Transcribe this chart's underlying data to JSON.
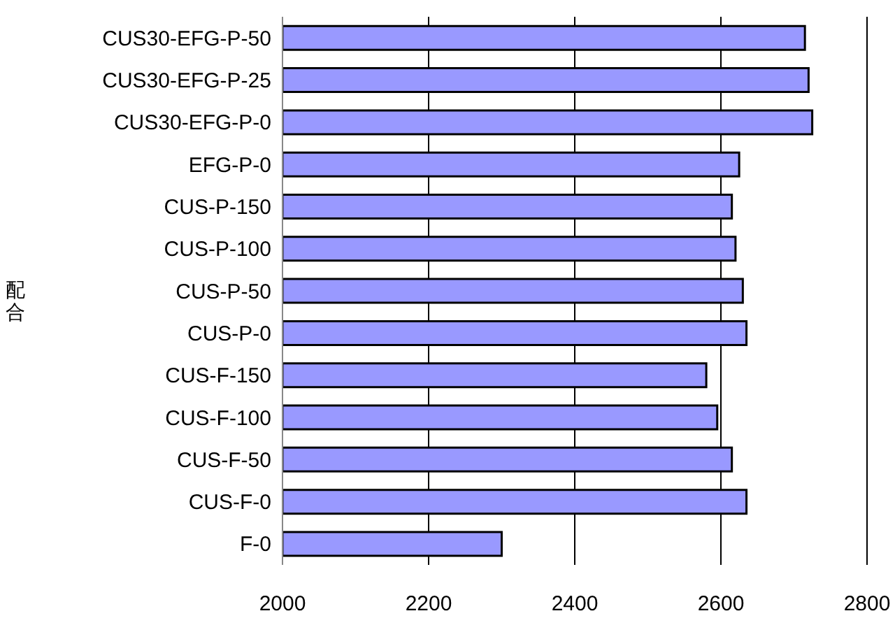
{
  "chart_data": {
    "type": "bar",
    "orientation": "horizontal",
    "ylabel": "配合",
    "categories": [
      "CUS30-EFG-P-50",
      "CUS30-EFG-P-25",
      "CUS30-EFG-P-0",
      "EFG-P-0",
      "CUS-P-150",
      "CUS-P-100",
      "CUS-P-50",
      "CUS-P-0",
      "CUS-F-150",
      "CUS-F-100",
      "CUS-F-50",
      "CUS-F-0",
      "F-0"
    ],
    "values": [
      2715,
      2720,
      2725,
      2625,
      2615,
      2620,
      2630,
      2635,
      2580,
      2595,
      2615,
      2635,
      2300
    ],
    "color": "#9999ff",
    "xlim": [
      2000,
      2800
    ],
    "xticks": [
      2000,
      2200,
      2400,
      2600,
      2800
    ],
    "grid": "x"
  }
}
